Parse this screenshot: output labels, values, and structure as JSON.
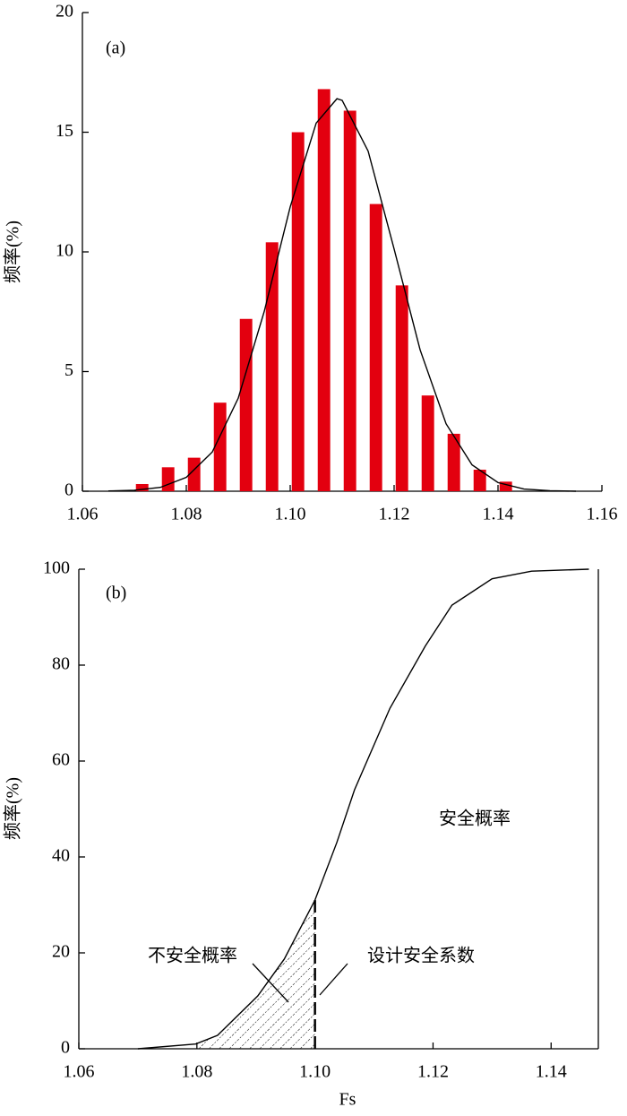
{
  "chart_data": [
    {
      "type": "bar",
      "label": "(a)",
      "ylabel": "频率(%)",
      "x": [
        1.0715,
        1.0765,
        1.0815,
        1.0865,
        1.0915,
        1.0965,
        1.1015,
        1.1065,
        1.1115,
        1.1165,
        1.1215,
        1.1265,
        1.1315,
        1.1365,
        1.1415
      ],
      "values": [
        0.3,
        1.0,
        1.4,
        3.7,
        7.2,
        10.4,
        15.0,
        16.8,
        15.9,
        12.0,
        8.6,
        4.0,
        2.4,
        0.9,
        0.4
      ],
      "color": "#e3000f",
      "curve": {
        "color": "#000000",
        "x": [
          1.065,
          1.07,
          1.075,
          1.08,
          1.085,
          1.09,
          1.095,
          1.1,
          1.105,
          1.109,
          1.11,
          1.115,
          1.12,
          1.125,
          1.13,
          1.135,
          1.14,
          1.145,
          1.15,
          1.155
        ],
        "values": [
          0.01,
          0.04,
          0.16,
          0.58,
          1.64,
          3.89,
          7.51,
          11.88,
          15.38,
          16.4,
          16.33,
          14.21,
          10.12,
          5.91,
          2.82,
          1.1,
          0.36,
          0.09,
          0.02,
          0
        ]
      },
      "xlim": [
        1.06,
        1.16
      ],
      "xticks": [
        1.06,
        1.08,
        {
          "value": 1.1,
          "label": "1.10"
        },
        1.12,
        1.14,
        1.16
      ],
      "ylim": [
        0,
        20
      ],
      "yticks": [
        0,
        5,
        10,
        15,
        20
      ]
    },
    {
      "type": "line",
      "label": "(b)",
      "ylabel": "频率(%)",
      "xlabel": "Fs",
      "color": "#000000",
      "x": [
        1.07,
        1.0798,
        1.0835,
        1.0903,
        1.0948,
        1.1,
        1.1037,
        1.1067,
        1.1127,
        1.1187,
        1.1232,
        1.13,
        1.1367,
        1.1464
      ],
      "values": [
        0,
        1,
        2.8,
        11,
        18.7,
        31,
        43,
        54,
        71,
        84,
        92.5,
        98,
        99.6,
        100
      ],
      "threshold": 1.1,
      "shade_range": [
        1.08,
        1.1
      ],
      "annotations": [
        "安全概率",
        "不安全概率",
        "设计安全系数"
      ],
      "xlim": [
        1.06,
        1.148
      ],
      "xticks": [
        1.06,
        1.08,
        {
          "value": 1.1,
          "label": "1.10"
        },
        1.12,
        1.14
      ],
      "ylim": [
        0,
        100
      ],
      "yticks": [
        0,
        20,
        40,
        60,
        80,
        100
      ]
    }
  ]
}
